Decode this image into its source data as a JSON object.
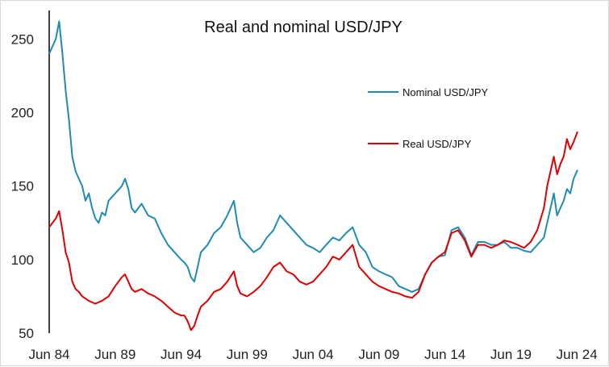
{
  "chart_data": {
    "type": "line",
    "title": "Real and nominal USD/JPY",
    "xlabel": "",
    "ylabel": "",
    "x_tick_labels": [
      "Jun 84",
      "Jun 89",
      "Jun 94",
      "Jun 99",
      "Jun 04",
      "Jun 09",
      "Jun 14",
      "Jun 19",
      "Jun 24"
    ],
    "y_tick_labels": [
      "50",
      "100",
      "150",
      "200",
      "250"
    ],
    "ylim": [
      50,
      265
    ],
    "xlim": [
      1984.5,
      2024.55
    ],
    "grid": false,
    "legend_position": "center-right",
    "series": [
      {
        "name": "Nominal USD/JPY",
        "color": "#1f8bb5",
        "x": [
          1984.5,
          1984.75,
          1985.0,
          1985.25,
          1985.5,
          1985.75,
          1986.0,
          1986.25,
          1986.5,
          1986.75,
          1987.0,
          1987.25,
          1987.5,
          1987.75,
          1988.0,
          1988.25,
          1988.5,
          1988.75,
          1989.0,
          1989.5,
          1990.0,
          1990.25,
          1990.5,
          1990.75,
          1991.0,
          1991.5,
          1992.0,
          1992.5,
          1993.0,
          1993.5,
          1994.0,
          1994.5,
          1994.75,
          1995.0,
          1995.25,
          1995.5,
          1995.75,
          1996.0,
          1996.5,
          1997.0,
          1997.5,
          1998.0,
          1998.5,
          1998.75,
          1999.0,
          1999.5,
          2000.0,
          2000.5,
          2001.0,
          2001.5,
          2002.0,
          2002.5,
          2003.0,
          2003.5,
          2004.0,
          2004.5,
          2005.0,
          2005.5,
          2006.0,
          2006.5,
          2007.0,
          2007.5,
          2008.0,
          2008.5,
          2009.0,
          2009.5,
          2010.0,
          2010.5,
          2011.0,
          2011.5,
          2012.0,
          2012.5,
          2013.0,
          2013.5,
          2014.0,
          2014.5,
          2015.0,
          2015.5,
          2016.0,
          2016.5,
          2017.0,
          2017.5,
          2018.0,
          2018.5,
          2019.0,
          2019.5,
          2020.0,
          2020.5,
          2021.0,
          2021.5,
          2022.0,
          2022.25,
          2022.5,
          2022.75,
          2023.0,
          2023.25,
          2023.5,
          2023.75,
          2024.0,
          2024.25,
          2024.55
        ],
        "values": [
          240,
          245,
          250,
          262,
          240,
          215,
          195,
          170,
          160,
          155,
          150,
          140,
          145,
          135,
          128,
          125,
          132,
          130,
          140,
          145,
          150,
          155,
          148,
          135,
          132,
          138,
          130,
          128,
          118,
          110,
          105,
          100,
          98,
          95,
          88,
          85,
          95,
          105,
          110,
          118,
          122,
          130,
          140,
          125,
          115,
          110,
          105,
          108,
          115,
          120,
          130,
          125,
          120,
          115,
          110,
          108,
          105,
          110,
          115,
          113,
          118,
          122,
          110,
          105,
          95,
          92,
          90,
          88,
          82,
          80,
          78,
          80,
          90,
          98,
          102,
          103,
          120,
          122,
          115,
          103,
          112,
          112,
          110,
          110,
          112,
          108,
          108,
          106,
          105,
          110,
          115,
          125,
          135,
          145,
          130,
          135,
          140,
          148,
          145,
          155,
          161
        ]
      },
      {
        "name": "Real USD/JPY",
        "color": "#e00000",
        "x": [
          1984.5,
          1984.75,
          1985.0,
          1985.25,
          1985.5,
          1985.75,
          1986.0,
          1986.25,
          1986.5,
          1986.75,
          1987.0,
          1987.5,
          1988.0,
          1988.5,
          1989.0,
          1989.5,
          1990.0,
          1990.25,
          1990.5,
          1990.75,
          1991.0,
          1991.5,
          1992.0,
          1992.5,
          1993.0,
          1993.5,
          1994.0,
          1994.5,
          1994.75,
          1995.0,
          1995.25,
          1995.5,
          1995.75,
          1996.0,
          1996.5,
          1997.0,
          1997.5,
          1998.0,
          1998.5,
          1998.75,
          1999.0,
          1999.5,
          2000.0,
          2000.5,
          2001.0,
          2001.5,
          2002.0,
          2002.5,
          2003.0,
          2003.5,
          2004.0,
          2004.5,
          2005.0,
          2005.5,
          2006.0,
          2006.5,
          2007.0,
          2007.5,
          2008.0,
          2008.5,
          2009.0,
          2009.5,
          2010.0,
          2010.5,
          2011.0,
          2011.5,
          2012.0,
          2012.5,
          2013.0,
          2013.5,
          2014.0,
          2014.5,
          2015.0,
          2015.5,
          2016.0,
          2016.5,
          2017.0,
          2017.5,
          2018.0,
          2018.5,
          2019.0,
          2019.5,
          2020.0,
          2020.5,
          2021.0,
          2021.5,
          2022.0,
          2022.25,
          2022.5,
          2022.75,
          2023.0,
          2023.25,
          2023.5,
          2023.75,
          2024.0,
          2024.25,
          2024.55
        ],
        "values": [
          122,
          125,
          128,
          133,
          120,
          105,
          98,
          85,
          80,
          78,
          75,
          72,
          70,
          72,
          75,
          82,
          88,
          90,
          85,
          80,
          78,
          80,
          77,
          75,
          72,
          68,
          64,
          62,
          62,
          58,
          52,
          55,
          62,
          68,
          72,
          78,
          80,
          85,
          92,
          82,
          77,
          75,
          78,
          82,
          88,
          95,
          98,
          92,
          90,
          85,
          83,
          85,
          90,
          95,
          102,
          100,
          105,
          110,
          95,
          90,
          85,
          82,
          80,
          78,
          77,
          75,
          74,
          78,
          90,
          98,
          102,
          105,
          118,
          120,
          113,
          102,
          110,
          110,
          108,
          110,
          113,
          112,
          110,
          108,
          112,
          120,
          135,
          150,
          160,
          170,
          158,
          165,
          170,
          182,
          175,
          180,
          187
        ]
      }
    ]
  }
}
